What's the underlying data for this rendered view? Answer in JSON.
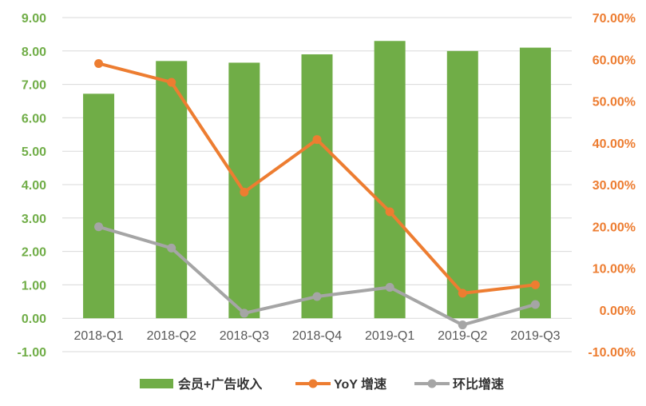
{
  "chart_data": {
    "type": "bar",
    "categories": [
      "2018-Q1",
      "2018-Q2",
      "2018-Q3",
      "2018-Q4",
      "2019-Q1",
      "2019-Q2",
      "2019-Q3"
    ],
    "series": [
      {
        "name": "会员+广告收入",
        "type": "bar",
        "axis": "left",
        "color": "#70ad47",
        "values": [
          6.72,
          7.7,
          7.65,
          7.9,
          8.3,
          8.0,
          8.1
        ]
      },
      {
        "name": "YoY 增速",
        "type": "line",
        "axis": "right",
        "color": "#ed7d31",
        "values": [
          0.59,
          0.545,
          0.282,
          0.408,
          0.235,
          0.04,
          0.06
        ]
      },
      {
        "name": "环比增速",
        "type": "line",
        "axis": "right",
        "color": "#a5a5a5",
        "values": [
          0.199,
          0.148,
          -0.008,
          0.032,
          0.054,
          -0.036,
          0.013
        ]
      }
    ],
    "y_left": {
      "ylim": [
        -1,
        9
      ],
      "ticks": [
        "-1.00",
        "0.00",
        "1.00",
        "2.00",
        "3.00",
        "4.00",
        "5.00",
        "6.00",
        "7.00",
        "8.00",
        "9.00"
      ],
      "color": "#70ad47"
    },
    "y_right": {
      "ylim": [
        -0.1,
        0.7
      ],
      "ticks": [
        "-10.00%",
        "0.00%",
        "10.00%",
        "20.00%",
        "30.00%",
        "40.00%",
        "50.00%",
        "60.00%",
        "70.00%"
      ],
      "color": "#ed7d31"
    },
    "grid": true,
    "legend": "bottom"
  }
}
